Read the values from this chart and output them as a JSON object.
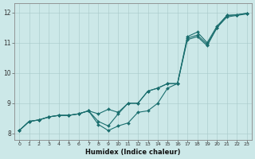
{
  "title": "",
  "xlabel": "Humidex (Indice chaleur)",
  "ylabel": "",
  "xlim": [
    -0.5,
    23.5
  ],
  "ylim": [
    7.8,
    12.3
  ],
  "yticks": [
    8,
    9,
    10,
    11,
    12
  ],
  "xticks": [
    0,
    1,
    2,
    3,
    4,
    5,
    6,
    7,
    8,
    9,
    10,
    11,
    12,
    13,
    14,
    15,
    16,
    17,
    18,
    19,
    20,
    21,
    22,
    23
  ],
  "bg_color": "#cce8e8",
  "grid_color": "#b8d4d4",
  "line_color": "#1a6e6e",
  "lines": [
    {
      "x": [
        0,
        1,
        2,
        3,
        4,
        5,
        6,
        7,
        8,
        9,
        10,
        11,
        12,
        13,
        14,
        15,
        16,
        17,
        18,
        19,
        20,
        21,
        22,
        23
      ],
      "y": [
        8.1,
        8.4,
        8.45,
        8.55,
        8.6,
        8.6,
        8.65,
        8.75,
        8.65,
        8.8,
        8.7,
        9.0,
        9.0,
        9.4,
        9.5,
        9.65,
        9.65,
        11.15,
        11.25,
        10.95,
        11.5,
        11.85,
        11.9,
        11.95
      ]
    },
    {
      "x": [
        0,
        1,
        2,
        3,
        4,
        5,
        6,
        7,
        8,
        9,
        10,
        11,
        12,
        13,
        14,
        15,
        16,
        17,
        18,
        19,
        20,
        21,
        22,
        23
      ],
      "y": [
        8.1,
        8.4,
        8.45,
        8.55,
        8.6,
        8.6,
        8.65,
        8.75,
        8.4,
        8.25,
        8.65,
        9.0,
        9.0,
        9.4,
        9.5,
        9.65,
        9.65,
        11.2,
        11.35,
        11.0,
        11.55,
        11.9,
        11.92,
        11.97
      ]
    },
    {
      "x": [
        0,
        1,
        2,
        3,
        4,
        5,
        6,
        7,
        8,
        9,
        10,
        11,
        12,
        13,
        14,
        15,
        16,
        17,
        18,
        19,
        20,
        21,
        22,
        23
      ],
      "y": [
        8.1,
        8.4,
        8.45,
        8.55,
        8.6,
        8.6,
        8.65,
        8.75,
        8.3,
        8.1,
        8.25,
        8.35,
        8.7,
        8.75,
        9.0,
        9.5,
        9.65,
        11.1,
        11.2,
        10.9,
        11.5,
        11.9,
        11.92,
        11.97
      ]
    }
  ]
}
